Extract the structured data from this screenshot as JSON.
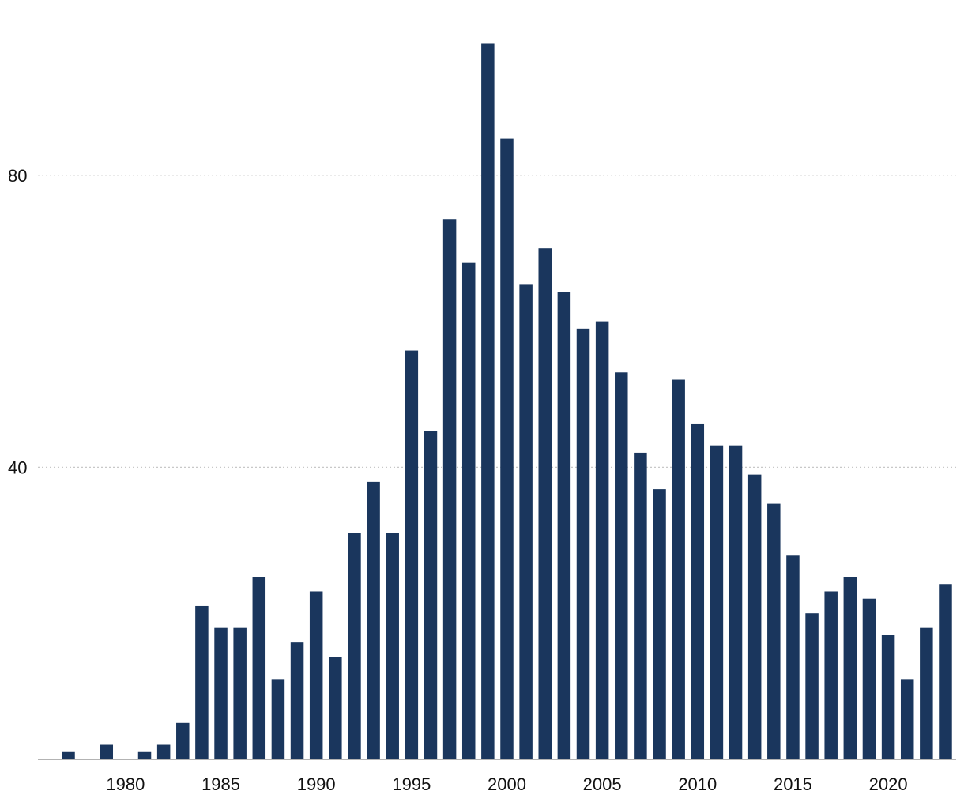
{
  "chart_data": {
    "type": "bar",
    "title": "",
    "xlabel": "",
    "ylabel": "",
    "color": "#1a365d",
    "grid": true,
    "ylim": [
      0,
      100
    ],
    "x": [
      1977,
      1978,
      1979,
      1980,
      1981,
      1982,
      1983,
      1984,
      1985,
      1986,
      1987,
      1988,
      1989,
      1990,
      1991,
      1992,
      1993,
      1994,
      1995,
      1996,
      1997,
      1998,
      1999,
      2000,
      2001,
      2002,
      2003,
      2004,
      2005,
      2006,
      2007,
      2008,
      2009,
      2010,
      2011,
      2012,
      2013,
      2014,
      2015,
      2016,
      2017,
      2018,
      2019,
      2020,
      2021,
      2022,
      2023
    ],
    "values": [
      1,
      0,
      2,
      0,
      1,
      2,
      5,
      21,
      18,
      18,
      25,
      11,
      16,
      23,
      14,
      31,
      38,
      31,
      56,
      45,
      74,
      68,
      98,
      85,
      65,
      70,
      64,
      59,
      60,
      53,
      42,
      37,
      52,
      46,
      43,
      43,
      39,
      35,
      28,
      20,
      23,
      25,
      22,
      17,
      11,
      18,
      24
    ],
    "xticks": [
      "1980",
      "1985",
      "1990",
      "1995",
      "2000",
      "2005",
      "2010",
      "2015",
      "2020"
    ],
    "xtick_values": [
      1980,
      1985,
      1990,
      1995,
      2000,
      2005,
      2010,
      2015,
      2020
    ],
    "yticks": [
      "40",
      "80"
    ],
    "ytick_values": [
      40,
      80
    ]
  }
}
